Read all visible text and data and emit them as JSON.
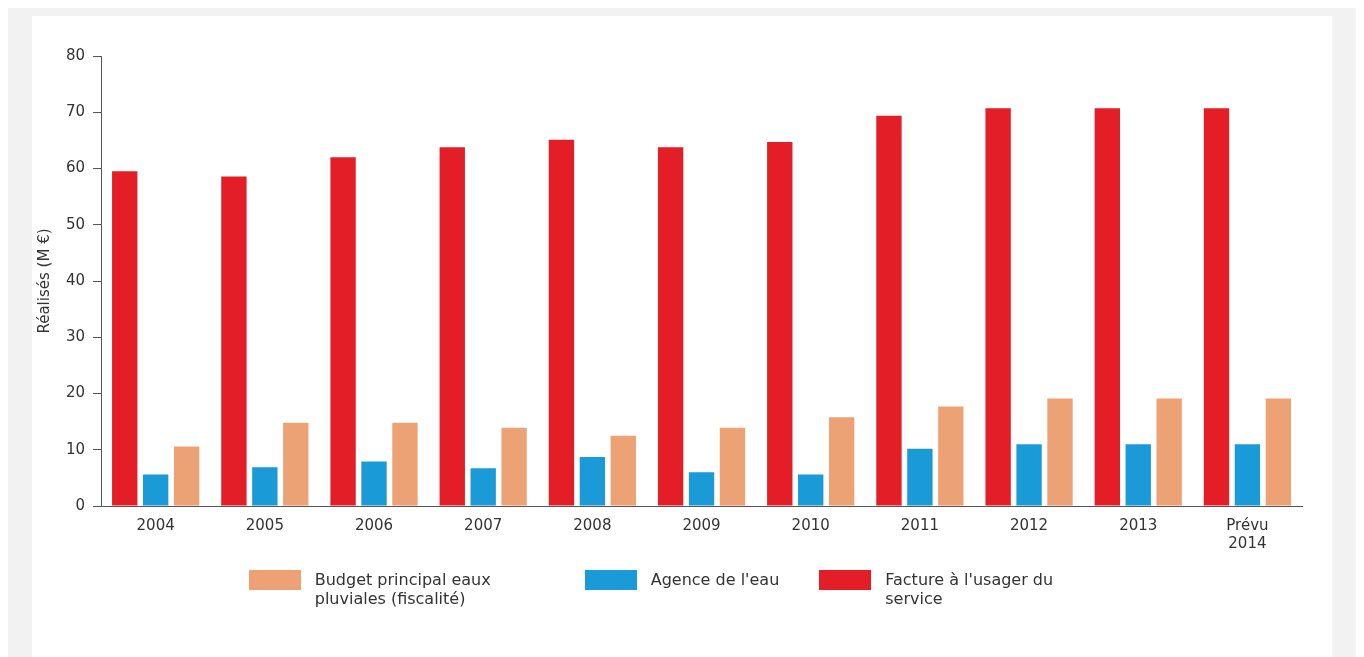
{
  "chart_data": {
    "type": "bar",
    "ylabel": "Réalisés (M €)",
    "categories": [
      "2004",
      "2005",
      "2006",
      "2007",
      "2008",
      "2009",
      "2010",
      "2011",
      "2012",
      "2013",
      "Prévu 2014"
    ],
    "series": [
      {
        "name": "Facture à l'usager du service",
        "color": "#e31e26",
        "values": [
          59.5,
          58.6,
          62,
          63.8,
          65.1,
          63.8,
          64.7,
          69.4,
          70.7,
          70.7,
          70.7
        ]
      },
      {
        "name": "Agence de l'eau",
        "color": "#1a9ad6",
        "values": [
          5.6,
          6.9,
          7.9,
          6.7,
          8.7,
          6.0,
          5.6,
          10.2,
          11.0,
          11.0,
          11.0
        ]
      },
      {
        "name": "Budget principal eaux pluviales (fiscalité)",
        "color": "#eda276",
        "values": [
          10.6,
          14.8,
          14.8,
          13.9,
          12.5,
          13.9,
          15.8,
          17.7,
          19.1,
          19.1,
          19.1
        ]
      }
    ],
    "ylim": [
      0,
      80
    ],
    "yticks": [
      0,
      10,
      20,
      30,
      40,
      50,
      60,
      70,
      80
    ],
    "grid": false,
    "legend": "bottom"
  }
}
